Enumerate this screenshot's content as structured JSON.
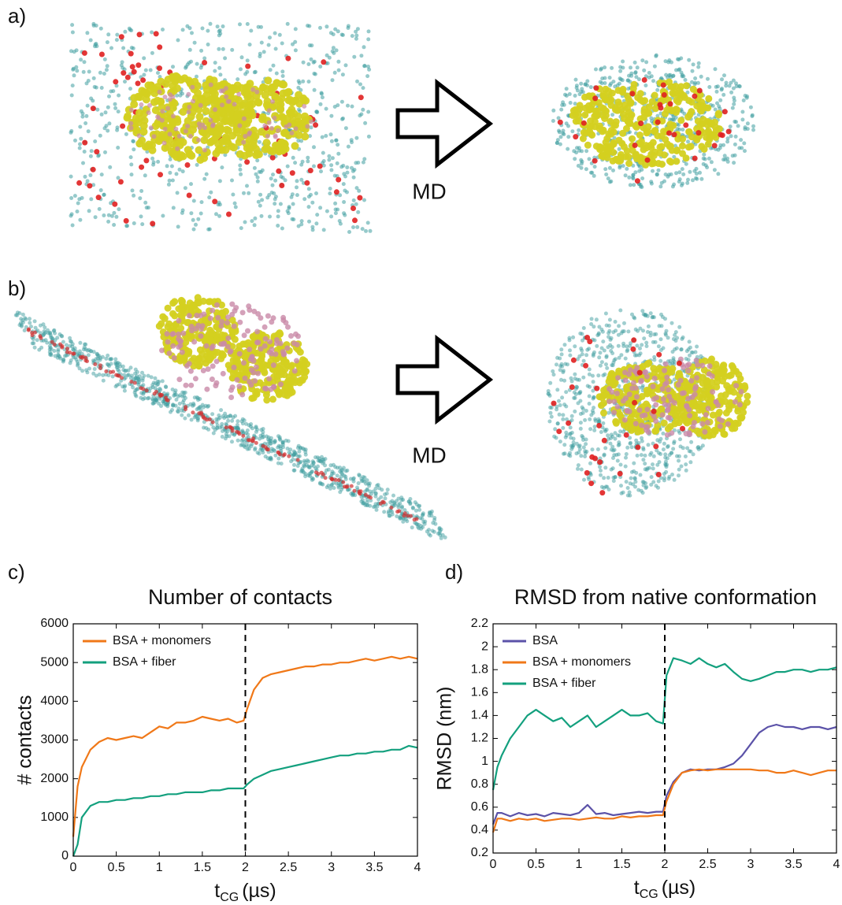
{
  "panels": [
    {
      "label": "a)",
      "arrow_label": "MD"
    },
    {
      "label": "b)",
      "arrow_label": "MD"
    }
  ],
  "chart_data": [
    {
      "type": "line",
      "panel_label": "c)",
      "title": "Number of contacts",
      "ylabel": "# contacts",
      "xlabel": "t",
      "xlabel_subscript": "CG",
      "xlabel_unit": "(µs)",
      "xlim": [
        0,
        4
      ],
      "xticks": [
        0,
        0.5,
        1,
        1.5,
        2,
        2.5,
        3,
        3.5,
        4
      ],
      "ylim": [
        0,
        6000
      ],
      "yticks": [
        0,
        1000,
        2000,
        3000,
        4000,
        5000,
        6000
      ],
      "legend": "upper left",
      "vline": 2,
      "x": [
        0,
        0.05,
        0.1,
        0.2,
        0.3,
        0.4,
        0.5,
        0.6,
        0.7,
        0.8,
        0.9,
        1.0,
        1.1,
        1.2,
        1.3,
        1.4,
        1.5,
        1.6,
        1.7,
        1.8,
        1.9,
        1.98,
        2.02,
        2.1,
        2.2,
        2.3,
        2.4,
        2.5,
        2.6,
        2.7,
        2.8,
        2.9,
        3.0,
        3.1,
        3.2,
        3.3,
        3.4,
        3.5,
        3.6,
        3.7,
        3.8,
        3.9,
        4.0
      ],
      "series": [
        {
          "name": "BSA + monomers",
          "color": "#f07818",
          "values": [
            500,
            1800,
            2300,
            2750,
            2950,
            3050,
            3000,
            3050,
            3100,
            3050,
            3200,
            3350,
            3300,
            3450,
            3450,
            3500,
            3600,
            3550,
            3500,
            3550,
            3450,
            3500,
            3800,
            4300,
            4600,
            4700,
            4750,
            4800,
            4850,
            4900,
            4900,
            4950,
            4950,
            5000,
            5000,
            5050,
            5100,
            5050,
            5100,
            5150,
            5100,
            5150,
            5100
          ]
        },
        {
          "name": "BSA + fiber",
          "color": "#13a07e",
          "values": [
            0,
            300,
            1000,
            1300,
            1400,
            1400,
            1450,
            1450,
            1500,
            1500,
            1550,
            1550,
            1600,
            1600,
            1650,
            1650,
            1650,
            1700,
            1700,
            1750,
            1750,
            1750,
            1850,
            2000,
            2100,
            2200,
            2250,
            2300,
            2350,
            2400,
            2450,
            2500,
            2550,
            2600,
            2600,
            2650,
            2650,
            2700,
            2700,
            2750,
            2750,
            2850,
            2800
          ]
        }
      ]
    },
    {
      "type": "line",
      "panel_label": "d)",
      "title": "RMSD from native conformation",
      "ylabel": "RMSD (nm)",
      "xlabel": "t",
      "xlabel_subscript": "CG",
      "xlabel_unit": "(µs)",
      "xlim": [
        0,
        4
      ],
      "xticks": [
        0,
        0.5,
        1,
        1.5,
        2,
        2.5,
        3,
        3.5,
        4
      ],
      "ylim": [
        0.2,
        2.2
      ],
      "yticks": [
        0.2,
        0.4,
        0.6,
        0.8,
        1,
        1.2,
        1.4,
        1.6,
        1.8,
        2,
        2.2
      ],
      "legend": "upper left",
      "vline": 2,
      "x": [
        0,
        0.05,
        0.1,
        0.2,
        0.3,
        0.4,
        0.5,
        0.6,
        0.7,
        0.8,
        0.9,
        1.0,
        1.1,
        1.2,
        1.3,
        1.4,
        1.5,
        1.6,
        1.7,
        1.8,
        1.9,
        1.98,
        2.02,
        2.1,
        2.2,
        2.3,
        2.4,
        2.5,
        2.6,
        2.7,
        2.8,
        2.9,
        3.0,
        3.1,
        3.2,
        3.3,
        3.4,
        3.5,
        3.6,
        3.7,
        3.8,
        3.9,
        4.0
      ],
      "series": [
        {
          "name": "BSA + fiber",
          "color": "#13a07e",
          "values": [
            0.75,
            0.95,
            1.05,
            1.2,
            1.3,
            1.4,
            1.45,
            1.4,
            1.35,
            1.38,
            1.3,
            1.35,
            1.4,
            1.3,
            1.35,
            1.4,
            1.45,
            1.4,
            1.4,
            1.42,
            1.35,
            1.33,
            1.75,
            1.9,
            1.88,
            1.85,
            1.9,
            1.85,
            1.82,
            1.85,
            1.78,
            1.72,
            1.7,
            1.72,
            1.75,
            1.78,
            1.78,
            1.8,
            1.8,
            1.78,
            1.8,
            1.8,
            1.82
          ]
        },
        {
          "name": "BSA",
          "color": "#5b52a8",
          "values": [
            0.45,
            0.55,
            0.55,
            0.52,
            0.55,
            0.53,
            0.54,
            0.52,
            0.55,
            0.54,
            0.53,
            0.55,
            0.62,
            0.54,
            0.55,
            0.53,
            0.54,
            0.55,
            0.56,
            0.55,
            0.56,
            0.56,
            0.7,
            0.82,
            0.9,
            0.93,
            0.92,
            0.93,
            0.93,
            0.95,
            0.98,
            1.05,
            1.15,
            1.25,
            1.3,
            1.32,
            1.3,
            1.3,
            1.28,
            1.3,
            1.3,
            1.28,
            1.3
          ]
        },
        {
          "name": "BSA + monomers",
          "color": "#f07818",
          "values": [
            0.38,
            0.5,
            0.5,
            0.48,
            0.5,
            0.49,
            0.5,
            0.48,
            0.49,
            0.5,
            0.5,
            0.49,
            0.5,
            0.51,
            0.5,
            0.5,
            0.52,
            0.51,
            0.52,
            0.52,
            0.53,
            0.53,
            0.65,
            0.8,
            0.9,
            0.92,
            0.93,
            0.92,
            0.93,
            0.93,
            0.93,
            0.93,
            0.93,
            0.92,
            0.92,
            0.9,
            0.9,
            0.92,
            0.9,
            0.88,
            0.9,
            0.92,
            0.92
          ]
        }
      ],
      "legend_order": [
        1,
        2,
        0
      ]
    }
  ]
}
